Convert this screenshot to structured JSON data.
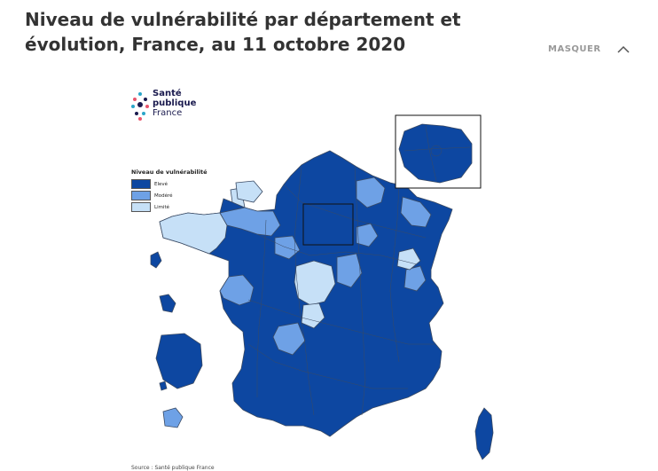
{
  "header": {
    "title": "Niveau de vulnérabilité par département et évolution, France, au 11 octobre 2020",
    "toggle_label": "MASQUER",
    "toggle_icon": "chevron-up-icon"
  },
  "logo": {
    "line1": "Santé",
    "line2": "publique",
    "line3": "France"
  },
  "legend": {
    "title": "Niveau de vulnérabilité",
    "items": [
      {
        "label": "Elevé",
        "color": "#0d47a1"
      },
      {
        "label": "Modéré",
        "color": "#6ea1e6"
      },
      {
        "label": "Limité",
        "color": "#c6e0f7"
      }
    ]
  },
  "map": {
    "colors": {
      "high": "#0d47a1",
      "moderate": "#6ea1e6",
      "limited": "#c6e0f7",
      "border": "#3a4a63"
    },
    "regions": [
      {
        "name": "france-metropolitan",
        "level": "high"
      },
      {
        "name": "brittany",
        "level": "limited"
      },
      {
        "name": "centre",
        "level": "limited"
      },
      {
        "name": "corsica",
        "level": "high"
      },
      {
        "name": "ile-de-france",
        "level": "high"
      },
      {
        "name": "guadeloupe",
        "level": "high"
      },
      {
        "name": "martinique",
        "level": "high"
      },
      {
        "name": "guyane",
        "level": "high"
      },
      {
        "name": "la-reunion",
        "level": "moderate"
      },
      {
        "name": "mayotte",
        "level": "high"
      }
    ]
  },
  "source": {
    "text": "Source : Santé publique France"
  }
}
